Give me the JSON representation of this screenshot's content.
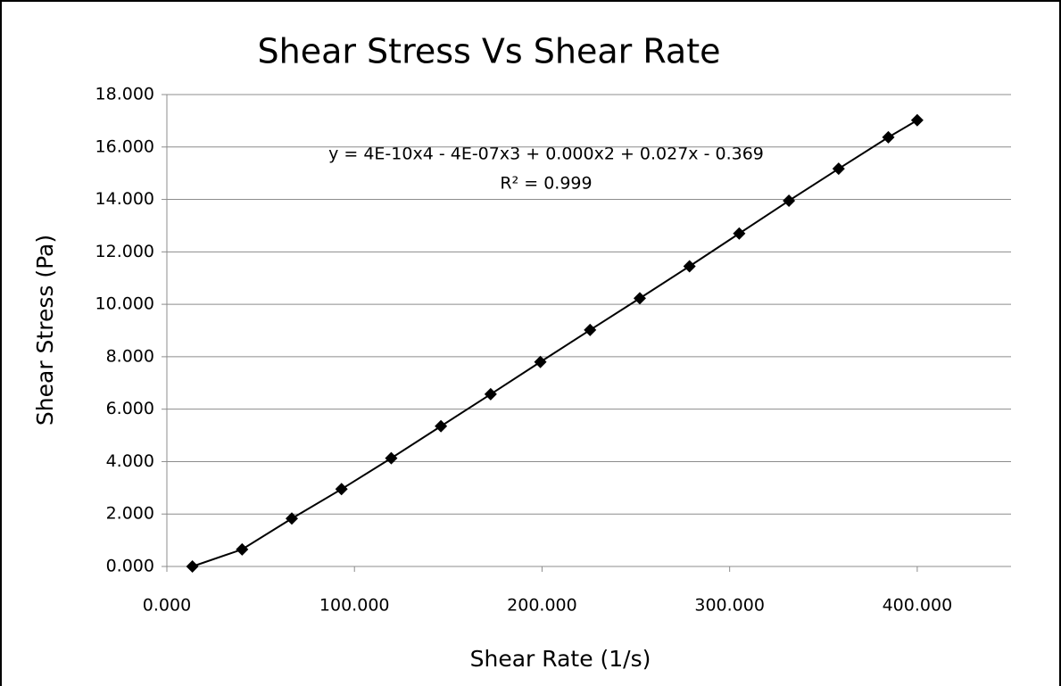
{
  "chart_data": {
    "type": "line",
    "title": "Shear Stress Vs Shear Rate",
    "x_label": "Shear Rate (1/s)",
    "y_label": "Shear Stress (Pa)",
    "annotations": [
      "y = 4E-10x4 - 4E-07x3 + 0.000x2 + 0.027x - 0.369",
      "R² = 0.999"
    ],
    "x": [
      13.6,
      40.1,
      66.6,
      93.1,
      119.6,
      146.1,
      172.6,
      199.1,
      225.6,
      252.1,
      278.6,
      305.1,
      331.6,
      358.1,
      384.6,
      400
    ],
    "series": [
      {
        "name": "Shear Stress",
        "color": "#000000",
        "values": [
          0,
          0.65,
          1.83,
          2.95,
          4.13,
          5.35,
          6.57,
          7.8,
          9.02,
          10.23,
          11.45,
          12.7,
          13.95,
          15.17,
          16.37,
          17.02
        ]
      }
    ],
    "xlim": [
      0,
      450
    ],
    "xticks": [
      {
        "value": 0,
        "label": "0.000"
      },
      {
        "value": 100,
        "label": "100.000"
      },
      {
        "value": 200,
        "label": "200.000"
      },
      {
        "value": 300,
        "label": "300.000"
      },
      {
        "value": 400,
        "label": "400.000"
      }
    ],
    "ylim": [
      0,
      18
    ],
    "yticks": [
      {
        "value": 0,
        "label": "0.000"
      },
      {
        "value": 2,
        "label": "2.000"
      },
      {
        "value": 4,
        "label": "4.000"
      },
      {
        "value": 6,
        "label": "6.000"
      },
      {
        "value": 8,
        "label": "8.000"
      },
      {
        "value": 10,
        "label": "10.000"
      },
      {
        "value": 12,
        "label": "12.000"
      },
      {
        "value": 14,
        "label": "14.000"
      },
      {
        "value": 16,
        "label": "16.000"
      },
      {
        "value": 18,
        "label": "18.000"
      }
    ],
    "grid": true
  }
}
